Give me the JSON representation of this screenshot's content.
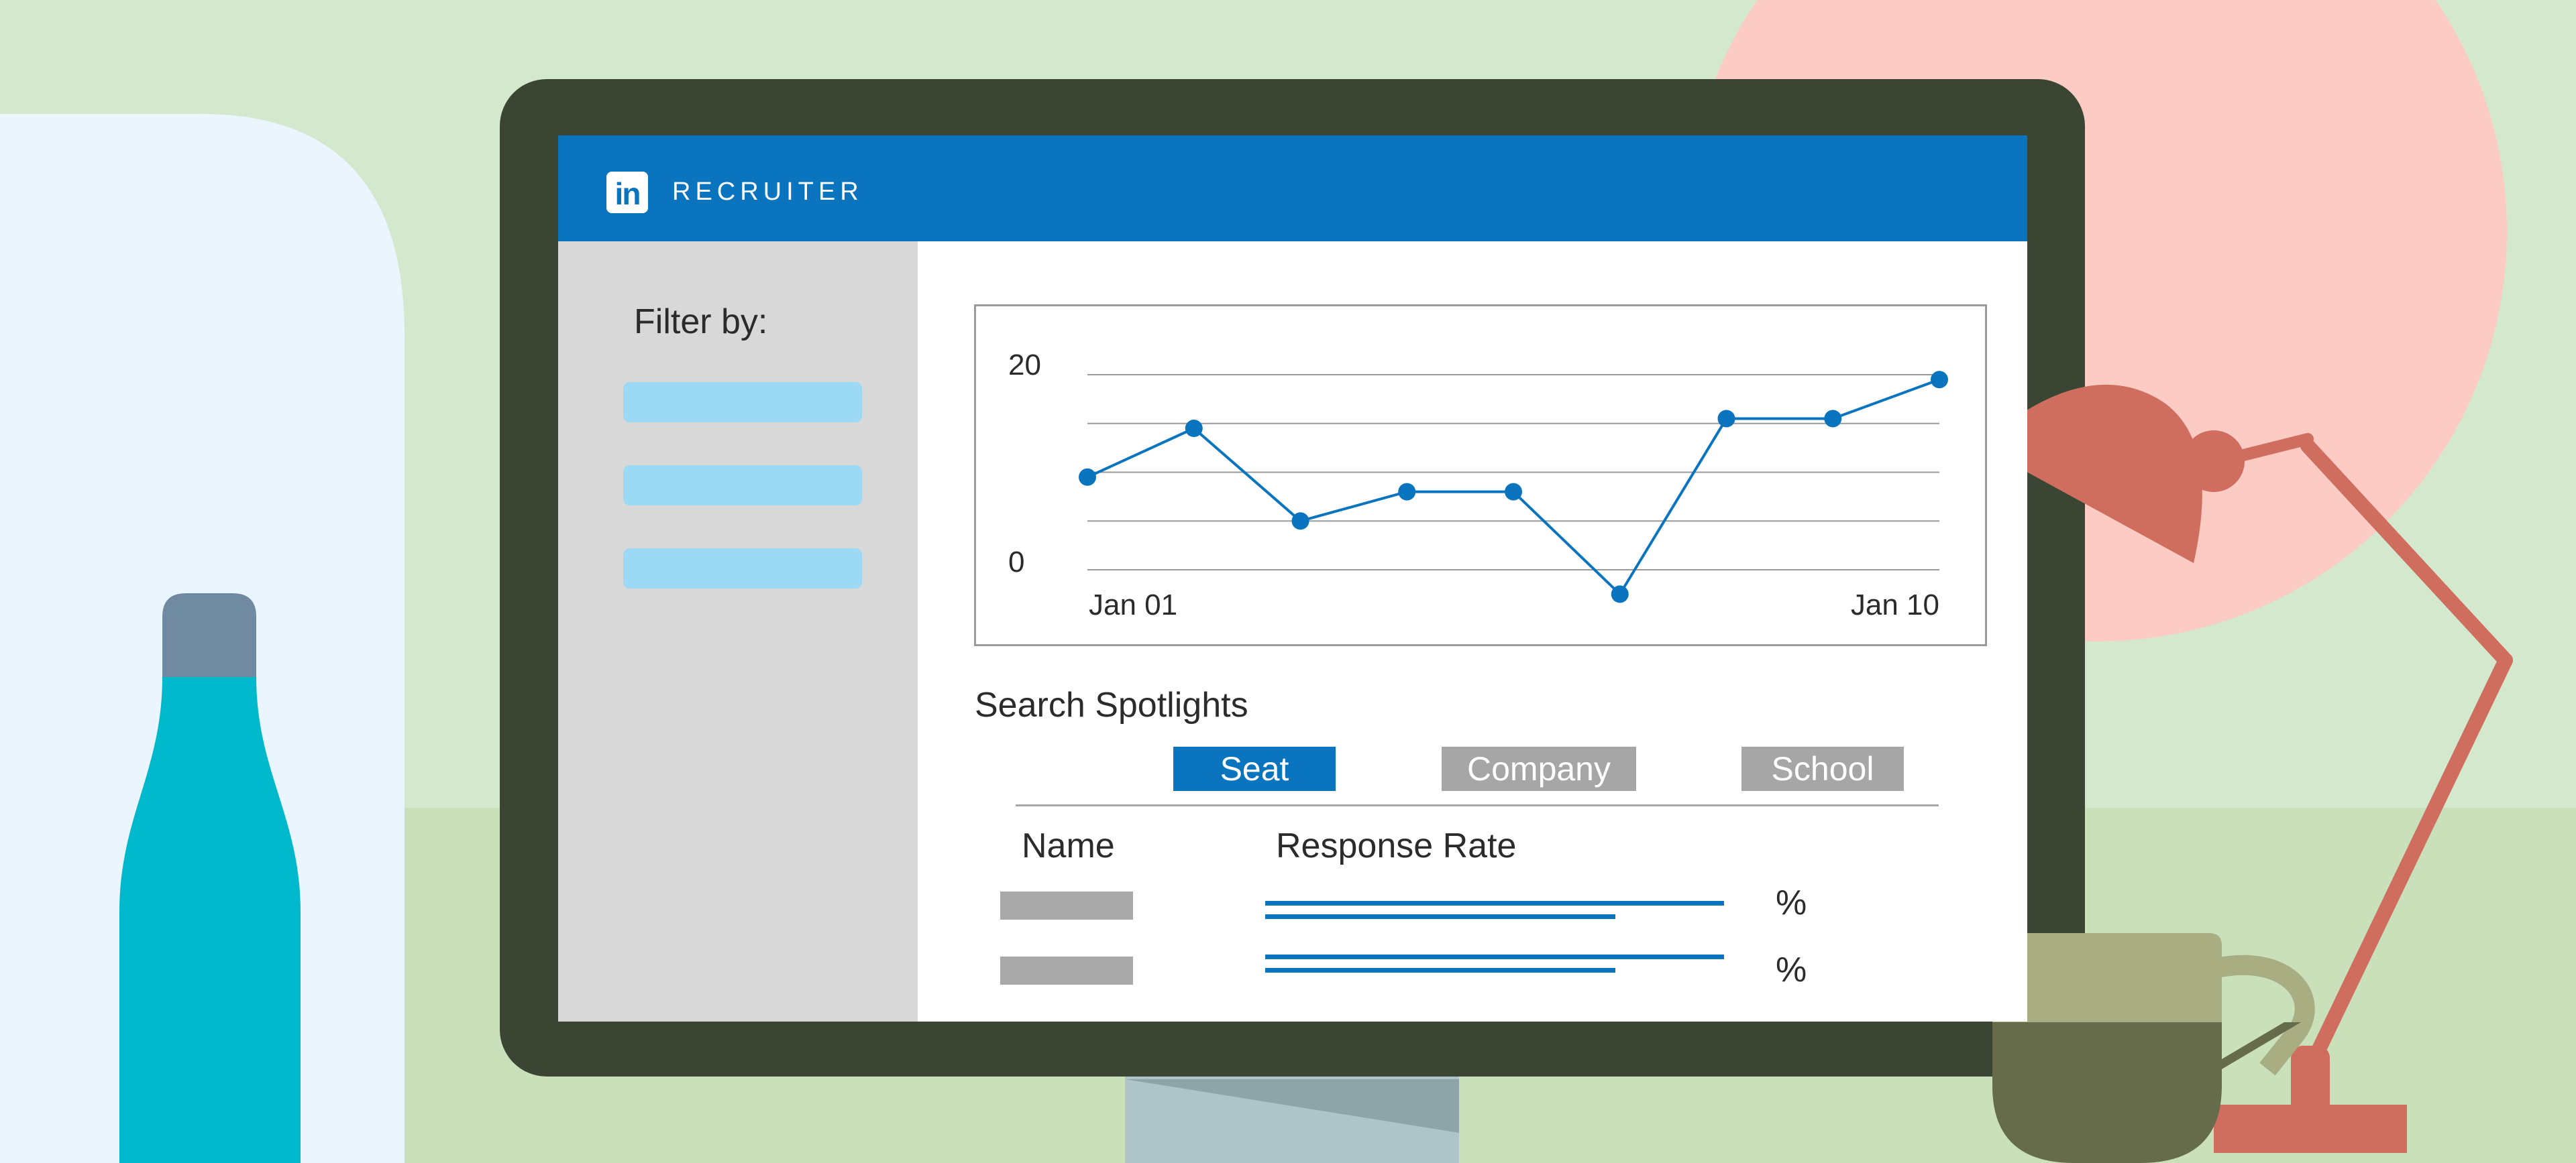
{
  "app": {
    "brand": "RECRUITER",
    "logo_text": "in"
  },
  "sidebar": {
    "filter_label": "Filter by:",
    "filter_options": 3
  },
  "chart_data": {
    "type": "line",
    "y_ticks": [
      "20",
      "0"
    ],
    "x_ticks": [
      "Jan 01",
      "Jan 10"
    ],
    "x": [
      1,
      2,
      3,
      4,
      5,
      6,
      7,
      8,
      9
    ],
    "values": [
      9.5,
      14.5,
      5,
      8,
      8,
      -2.5,
      15.5,
      15.5,
      19.5
    ],
    "ylim": [
      0,
      20
    ],
    "grid": true,
    "colors": {
      "line": "#0a74be",
      "grid": "#9a9a9a"
    }
  },
  "spotlights": {
    "title": "Search Spotlights",
    "tabs": [
      {
        "label": "Seat",
        "active": true
      },
      {
        "label": "Company",
        "active": false
      },
      {
        "label": "School",
        "active": false
      }
    ],
    "columns": {
      "name": "Name",
      "rate": "Response Rate"
    },
    "rows": [
      {
        "rate_suffix": "%"
      },
      {
        "rate_suffix": "%"
      }
    ]
  },
  "colors": {
    "accent": "#0a74be",
    "tab_inactive": "#a6a6a6",
    "monitor_frame": "#3a4534"
  }
}
